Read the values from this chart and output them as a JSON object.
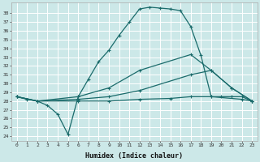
{
  "xlabel": "Humidex (Indice chaleur)",
  "background_color": "#cce8e8",
  "grid_color": "#ffffff",
  "line_color": "#1a6b6b",
  "xlim": [
    -0.5,
    23.5
  ],
  "ylim": [
    23.5,
    39.2
  ],
  "xticks": [
    0,
    1,
    2,
    3,
    4,
    5,
    6,
    7,
    8,
    9,
    10,
    11,
    12,
    13,
    14,
    15,
    16,
    17,
    18,
    19,
    20,
    21,
    22,
    23
  ],
  "yticks": [
    24,
    25,
    26,
    27,
    28,
    29,
    30,
    31,
    32,
    33,
    34,
    35,
    36,
    37,
    38
  ],
  "line1_x": [
    0,
    1,
    2,
    3,
    4,
    5,
    6,
    7,
    8,
    9,
    10,
    11,
    12,
    13,
    14,
    15,
    16,
    17,
    18,
    19,
    20,
    21,
    22,
    23
  ],
  "line1_y": [
    28.5,
    28.2,
    28.0,
    27.5,
    26.5,
    24.2,
    28.5,
    30.5,
    32.5,
    33.8,
    35.5,
    37.0,
    38.5,
    38.7,
    38.6,
    38.5,
    38.3,
    36.5,
    33.2,
    28.5,
    28.5,
    28.5,
    28.5,
    28.0
  ],
  "line2_x": [
    0,
    2,
    6,
    9,
    12,
    17,
    19,
    21,
    23
  ],
  "line2_y": [
    28.5,
    28.0,
    28.5,
    29.5,
    31.5,
    33.3,
    31.5,
    29.5,
    28.0
  ],
  "line3_x": [
    0,
    2,
    6,
    9,
    12,
    17,
    19,
    21,
    23
  ],
  "line3_y": [
    28.5,
    28.0,
    28.2,
    28.5,
    29.2,
    31.0,
    31.5,
    29.5,
    28.0
  ],
  "line4_x": [
    0,
    2,
    6,
    9,
    12,
    15,
    17,
    19,
    22,
    23
  ],
  "line4_y": [
    28.5,
    28.0,
    28.0,
    28.0,
    28.2,
    28.3,
    28.5,
    28.5,
    28.2,
    28.0
  ]
}
